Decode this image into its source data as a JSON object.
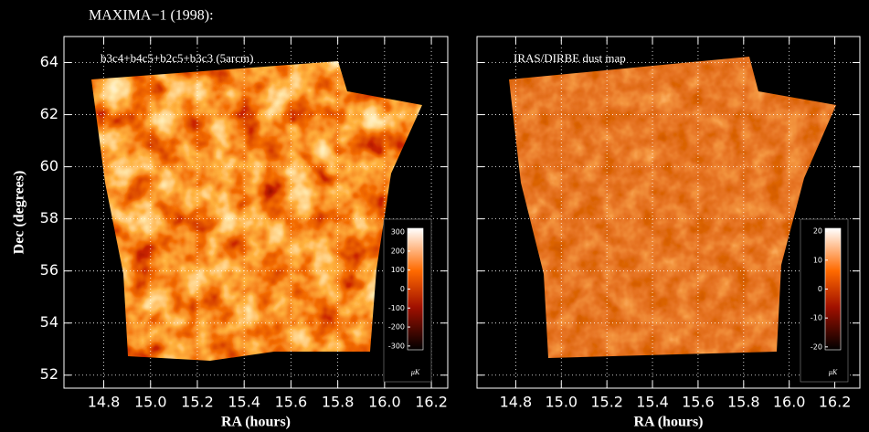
{
  "title": "MAXIMA−1 (1998):",
  "chart_data": [
    {
      "type": "map",
      "label": "b3c4+b4c5+b2c5+b3c3 (5arcm)",
      "x_label": "RA (hours)",
      "y_label": "Dec (degrees)",
      "xlim": [
        14.63,
        16.27
      ],
      "xticks": [
        14.8,
        {
          "value": 15,
          "label": "15.0"
        },
        15.2,
        15.4,
        15.6,
        15.8,
        {
          "value": 16,
          "label": "16.0"
        },
        16.2
      ],
      "ylim": [
        51.5,
        65.0
      ],
      "yticks": [
        52,
        54,
        56,
        58,
        60,
        62,
        64
      ],
      "ytick_labels": true,
      "grid": true,
      "colorbar": {
        "lim": [
          -320,
          320
        ],
        "ticks": [
          300,
          200,
          100,
          0,
          -100,
          -200,
          -300
        ],
        "unit": "μK"
      }
    },
    {
      "type": "map",
      "label": "IRAS/DIRBE dust map",
      "x_label": "RA (hours)",
      "xlim": [
        14.63,
        16.31
      ],
      "xticks": [
        14.8,
        {
          "value": 15,
          "label": "15.0"
        },
        15.2,
        15.4,
        15.6,
        15.8,
        {
          "value": 16,
          "label": "16.0"
        },
        16.2
      ],
      "ylim": [
        51.5,
        65.0
      ],
      "yticks": [
        52,
        54,
        56,
        58,
        60,
        62,
        64
      ],
      "ytick_labels": false,
      "grid": true,
      "colorbar": {
        "lim": [
          -21,
          21
        ],
        "ticks": [
          20,
          10,
          0,
          -10,
          -20
        ],
        "unit": "μK"
      }
    }
  ]
}
